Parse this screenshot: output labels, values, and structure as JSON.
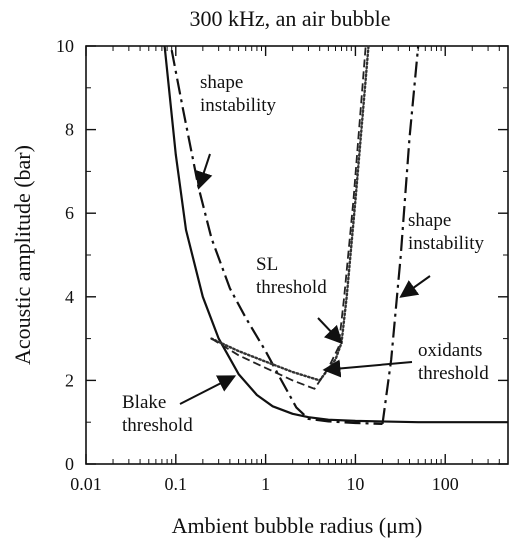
{
  "chart_data": {
    "type": "line",
    "title": "300 kHz, an air bubble",
    "xlabel": "Ambient bubble radius (μm)",
    "ylabel": "Acoustic amplitude (bar)",
    "xscale": "log",
    "xlim": [
      0.01,
      500
    ],
    "ylim": [
      0,
      10
    ],
    "x_ticks": [
      {
        "value": 0.01,
        "label": "0.01"
      },
      {
        "value": 0.1,
        "label": "0.1"
      },
      {
        "value": 1,
        "label": "1"
      },
      {
        "value": 10,
        "label": "10"
      },
      {
        "value": 100,
        "label": "100"
      }
    ],
    "y_ticks": [
      {
        "value": 0,
        "label": "0"
      },
      {
        "value": 2,
        "label": "2"
      },
      {
        "value": 4,
        "label": "4"
      },
      {
        "value": 6,
        "label": "6"
      },
      {
        "value": 8,
        "label": "8"
      },
      {
        "value": 10,
        "label": "10"
      }
    ],
    "grid": false,
    "series": [
      {
        "key": "blake",
        "style": "solid",
        "color": "#111111",
        "points": [
          [
            0.075,
            10
          ],
          [
            0.1,
            7.4
          ],
          [
            0.13,
            5.6
          ],
          [
            0.2,
            4.0
          ],
          [
            0.3,
            3.0
          ],
          [
            0.5,
            2.15
          ],
          [
            0.8,
            1.65
          ],
          [
            1.2,
            1.38
          ],
          [
            2,
            1.2
          ],
          [
            3,
            1.12
          ],
          [
            5,
            1.06
          ],
          [
            10,
            1.03
          ],
          [
            50,
            1.0
          ],
          [
            500,
            1.0
          ]
        ]
      },
      {
        "key": "shape-left",
        "style": "dashdot",
        "color": "#111111",
        "points": [
          [
            0.09,
            9.9
          ],
          [
            0.12,
            8.5
          ],
          [
            0.18,
            6.6
          ],
          [
            0.25,
            5.4
          ],
          [
            0.4,
            4.2
          ],
          [
            0.6,
            3.5
          ],
          [
            1.0,
            2.7
          ],
          [
            1.5,
            2.0
          ],
          [
            2.2,
            1.35
          ],
          [
            3,
            1.08
          ],
          [
            5,
            1.02
          ],
          [
            10,
            0.98
          ],
          [
            20,
            0.96
          ]
        ]
      },
      {
        "key": "shape-right",
        "style": "dashdot",
        "color": "#111111",
        "points": [
          [
            20,
            0.96
          ],
          [
            25,
            2.5
          ],
          [
            32,
            5.0
          ],
          [
            40,
            7.8
          ],
          [
            50,
            10
          ]
        ]
      },
      {
        "key": "sl",
        "style": "dotted",
        "color": "#333333",
        "points": [
          [
            0.25,
            3.0
          ],
          [
            0.5,
            2.7
          ],
          [
            1,
            2.45
          ],
          [
            2,
            2.2
          ],
          [
            4,
            2.0
          ],
          [
            6,
            2.5
          ],
          [
            7,
            2.9
          ],
          [
            8,
            4.0
          ],
          [
            10,
            6.3
          ],
          [
            14,
            10
          ]
        ]
      },
      {
        "key": "oxidants",
        "style": "dashed",
        "color": "#222222",
        "points": [
          [
            0.25,
            3.0
          ],
          [
            0.5,
            2.6
          ],
          [
            1,
            2.3
          ],
          [
            2,
            2.0
          ],
          [
            3.5,
            1.8
          ],
          [
            5,
            2.3
          ],
          [
            6.5,
            2.8
          ],
          [
            7.5,
            4.0
          ],
          [
            9.5,
            6.3
          ],
          [
            13,
            10
          ]
        ]
      }
    ],
    "annotations": [
      {
        "key": "shape-left",
        "lines": [
          "shape",
          "instability"
        ],
        "points_to": [
          0.18,
          6.6
        ]
      },
      {
        "key": "shape-right",
        "lines": [
          "shape",
          "instability"
        ],
        "points_to": [
          32,
          4.0
        ]
      },
      {
        "key": "sl",
        "lines": [
          "SL",
          "threshold"
        ],
        "points_to": [
          7,
          2.9
        ]
      },
      {
        "key": "oxidants",
        "lines": [
          "oxidants",
          "threshold"
        ],
        "points_to": [
          4.5,
          2.25
        ]
      },
      {
        "key": "blake",
        "lines": [
          "Blake",
          "threshold"
        ],
        "points_to": [
          0.45,
          2.1
        ]
      }
    ]
  }
}
